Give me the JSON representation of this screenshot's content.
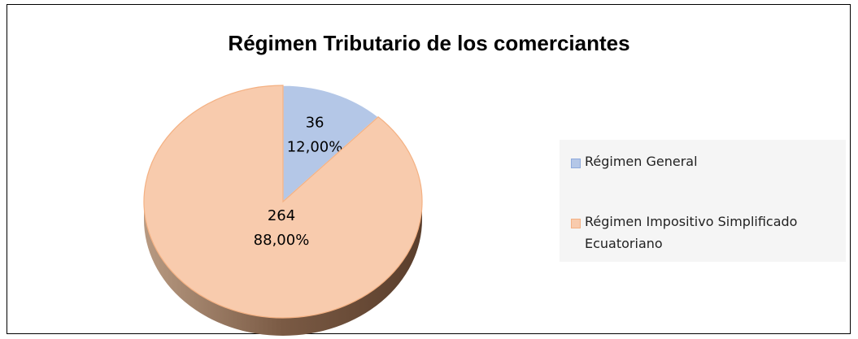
{
  "chart_data": {
    "type": "pie",
    "title": "Régimen Tributario de los comerciantes",
    "categories": [
      "Régimen General",
      "Régimen Impositivo Simplificado Ecuatoriano"
    ],
    "values": [
      36,
      264
    ],
    "percentages": [
      12,
      88
    ],
    "percentage_labels": [
      "12,00%",
      "88,00%"
    ],
    "colors": [
      "#b4c7e7",
      "#f8cbad"
    ],
    "legend": "right"
  }
}
